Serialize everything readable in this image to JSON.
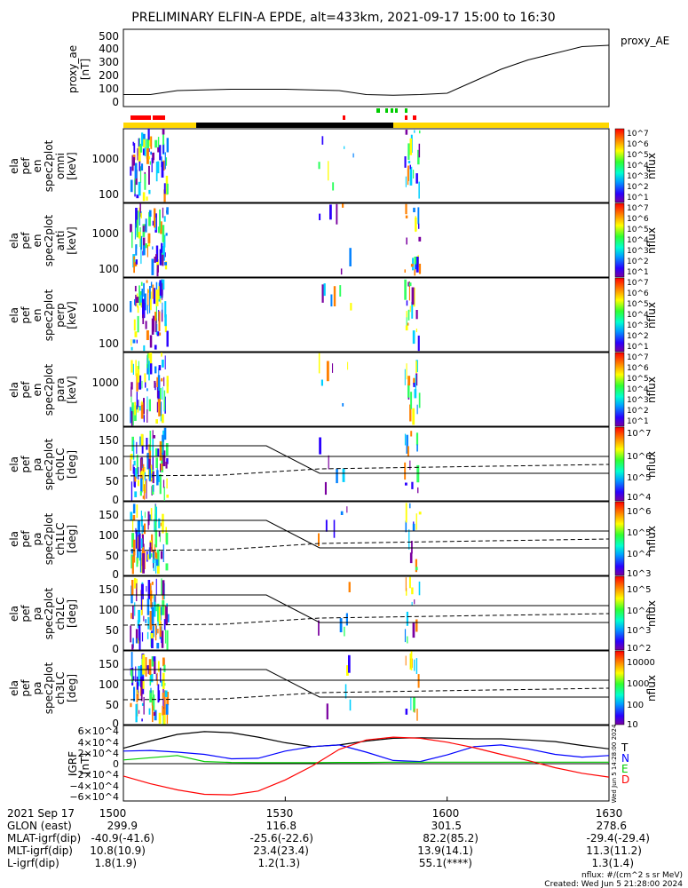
{
  "title": "PRELIMINARY ELFIN-A EPDE, alt=433km, 2021-09-17 15:00 to 16:30",
  "ae_panel": {
    "ylabel": [
      "proxy_ae",
      "[nT]"
    ],
    "legend": "proxy_AE",
    "yticks": [
      "500",
      "400",
      "300",
      "200",
      "100",
      "0"
    ]
  },
  "spec_panels": [
    {
      "ylabel": [
        "ela",
        "pef",
        "en",
        "spec2plot",
        "omni",
        "[keV]"
      ],
      "yticks": [
        "1000",
        "100"
      ],
      "cbar_ticks": [
        "10^7",
        "10^6",
        "10^5",
        "10^4",
        "10^3",
        "10^2",
        "10^1"
      ],
      "cbar_label": "nflux"
    },
    {
      "ylabel": [
        "ela",
        "pef",
        "en",
        "spec2plot",
        "anti",
        "[keV]"
      ],
      "yticks": [
        "1000",
        "100"
      ],
      "cbar_ticks": [
        "10^7",
        "10^6",
        "10^5",
        "10^4",
        "10^3",
        "10^2",
        "10^1"
      ],
      "cbar_label": "nflux"
    },
    {
      "ylabel": [
        "ela",
        "pef",
        "en",
        "spec2plot",
        "perp",
        "[keV]"
      ],
      "yticks": [
        "1000",
        "100"
      ],
      "cbar_ticks": [
        "10^7",
        "10^6",
        "10^5",
        "10^4",
        "10^3",
        "10^2",
        "10^1"
      ],
      "cbar_label": "nflux"
    },
    {
      "ylabel": [
        "ela",
        "pef",
        "en",
        "spec2plot",
        "para",
        "[keV]"
      ],
      "yticks": [
        "1000",
        "100"
      ],
      "cbar_ticks": [
        "10^7",
        "10^6",
        "10^5",
        "10^4",
        "10^3",
        "10^2",
        "10^1"
      ],
      "cbar_label": "nflux"
    }
  ],
  "pa_panels": [
    {
      "ylabel": [
        "ela",
        "pef",
        "pa",
        "spec2plot",
        "ch0LC",
        "[deg]"
      ],
      "yticks": [
        "150",
        "100",
        "50",
        "0"
      ],
      "cbar_ticks": [
        "10^7",
        "10^6",
        "10^5",
        "10^4"
      ],
      "cbar_label": "nflux"
    },
    {
      "ylabel": [
        "ela",
        "pef",
        "pa",
        "spec2plot",
        "ch1LC",
        "[deg]"
      ],
      "yticks": [
        "150",
        "100",
        "50",
        "0"
      ],
      "cbar_ticks": [
        "10^6",
        "10^5",
        "10^4",
        "10^3"
      ],
      "cbar_label": "nflux"
    },
    {
      "ylabel": [
        "ela",
        "pef",
        "pa",
        "spec2plot",
        "ch2LC",
        "[deg]"
      ],
      "yticks": [
        "150",
        "100",
        "50",
        "0"
      ],
      "cbar_ticks": [
        "10^5",
        "10^4",
        "10^3",
        "10^2"
      ],
      "cbar_label": "nflux"
    },
    {
      "ylabel": [
        "ela",
        "pef",
        "pa",
        "spec2plot",
        "ch3LC",
        "[deg]"
      ],
      "yticks": [
        "150",
        "100",
        "50",
        "0"
      ],
      "cbar_ticks": [
        "10000",
        "1000",
        "100",
        "10"
      ],
      "cbar_label": "nflux"
    }
  ],
  "igrf_panel": {
    "ylabel": [
      "IGRF",
      "[nT]"
    ],
    "yticks": [
      "6×10^4",
      "4×10^4",
      "2×10^4",
      "0",
      "−2×10^4",
      "−4×10^4",
      "−6×10^4"
    ],
    "legend": [
      {
        "label": "T",
        "color": "#000000"
      },
      {
        "label": "N",
        "color": "#0000ff"
      },
      {
        "label": "E",
        "color": "#00cc00"
      },
      {
        "label": "D",
        "color": "#ff0000"
      }
    ],
    "stamp": "Wed Jun  5 14:28:00 2024"
  },
  "xaxis_table": {
    "rows": [
      {
        "label": "2021 Sep 17",
        "values": [
          "1500",
          "1530",
          "1600",
          "1630"
        ]
      },
      {
        "label": "GLON (east)",
        "values": [
          "299.9",
          "116.8",
          "301.5",
          "278.6"
        ]
      },
      {
        "label": "MLAT-igrf(dip)",
        "values": [
          "-40.9(-41.6)",
          "-25.6(-22.6)",
          "82.2(85.2)",
          "-29.4(-29.4)"
        ]
      },
      {
        "label": "MLT-igrf(dip)",
        "values": [
          "10.8(10.9)",
          "23.4(23.4)",
          "13.9(14.1)",
          "11.3(11.2)"
        ]
      },
      {
        "label": "L-igrf(dip)",
        "values": [
          "1.8(1.9)",
          "1.2(1.3)",
          "55.1(****)",
          "1.3(1.4)"
        ]
      }
    ]
  },
  "footer": {
    "units": "nflux: #/(cm^2 s sr MeV)",
    "created": "Created: Wed Jun  5 21:28:00 2024"
  },
  "colors": {
    "sunlit": "#ffd700",
    "shadow": "#000000",
    "ground_track": "#00cc00",
    "science_zone": "#ff0000"
  },
  "chart_data": [
    {
      "type": "line",
      "x": [
        1500,
        1505,
        1510,
        1520,
        1530,
        1540,
        1545,
        1550,
        1555,
        1600,
        1605,
        1610,
        1615,
        1620,
        1625,
        1630
      ],
      "series": [
        {
          "name": "proxy_AE",
          "values": [
            70,
            70,
            100,
            110,
            110,
            100,
            70,
            65,
            70,
            80,
            170,
            260,
            330,
            380,
            430,
            440
          ]
        }
      ],
      "xlim": [
        1500,
        1630
      ],
      "ylim": [
        -20,
        560
      ]
    },
    {
      "type": "line",
      "x": [
        1500,
        1505,
        1510,
        1515,
        1520,
        1525,
        1530,
        1535,
        1540,
        1545,
        1550,
        1555,
        1600,
        1605,
        1610,
        1615,
        1620,
        1625,
        1630
      ],
      "series": [
        {
          "name": "T",
          "values": [
            27000,
            40000,
            52000,
            57000,
            55000,
            47000,
            37000,
            30000,
            33000,
            40000,
            45000,
            46000,
            45000,
            44000,
            44000,
            42000,
            39000,
            32000,
            26000
          ]
        },
        {
          "name": "N",
          "values": [
            22000,
            23000,
            20000,
            16000,
            8000,
            9000,
            22000,
            30000,
            33000,
            20000,
            5000,
            3000,
            15000,
            30000,
            33000,
            26000,
            16000,
            11000,
            14000
          ]
        },
        {
          "name": "E",
          "values": [
            6000,
            10000,
            14000,
            3000,
            1500,
            1000,
            1000,
            1000,
            1500,
            1500,
            2000,
            2000,
            2000,
            2000,
            2000,
            2000,
            2000,
            2000,
            2000
          ]
        },
        {
          "name": "D",
          "values": [
            -23000,
            -37000,
            -48000,
            -56000,
            -57000,
            -50000,
            -30000,
            -5000,
            25000,
            42000,
            47000,
            45000,
            38000,
            28000,
            16000,
            5000,
            -8000,
            -18000,
            -25000
          ]
        }
      ],
      "xlim": [
        1500,
        1630
      ],
      "ylim": [
        -68000,
        68000
      ]
    }
  ]
}
